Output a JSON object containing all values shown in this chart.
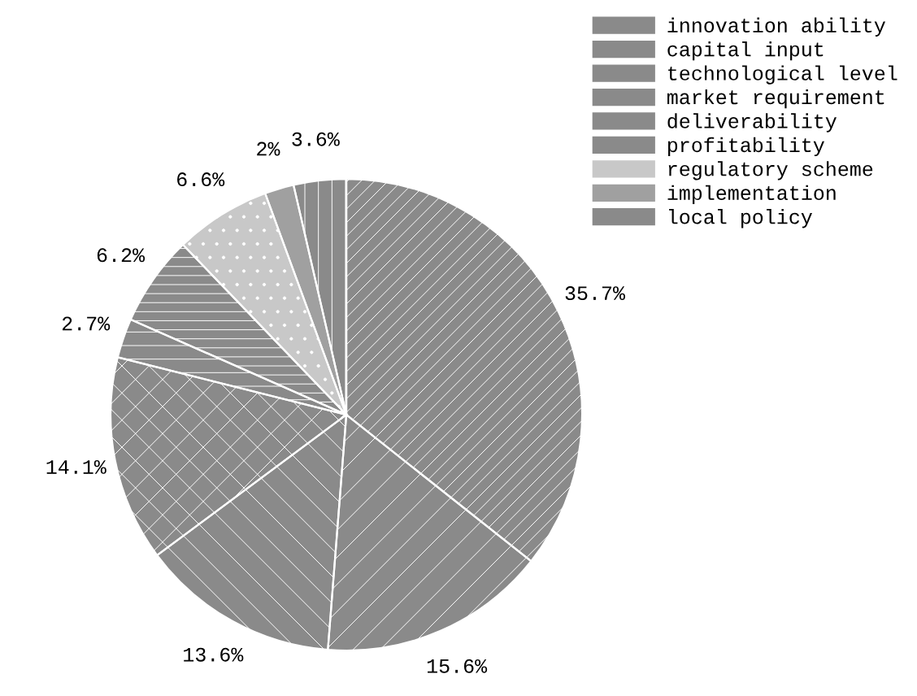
{
  "chart_data": {
    "type": "pie",
    "categories": [
      "innovation ability",
      "capital input",
      "technological level",
      "market requirement",
      "deliverability",
      "profitability",
      "regulatory scheme",
      "implementation",
      "local policy"
    ],
    "values": [
      35.7,
      15.6,
      13.6,
      14.1,
      2.7,
      6.2,
      6.6,
      2,
      3.6
    ],
    "value_labels": [
      "35.7%",
      "15.6%",
      "13.6%",
      "14.1%",
      "2.7%",
      "6.2%",
      "6.6%",
      "2%",
      "3.6%"
    ],
    "colors": [
      "#8a8a8a",
      "#8a8a8a",
      "#8a8a8a",
      "#8a8a8a",
      "#8a8a8a",
      "#8a8a8a",
      "#c8c8c8",
      "#a0a0a0",
      "#8a8a8a"
    ],
    "legend": "top right"
  }
}
